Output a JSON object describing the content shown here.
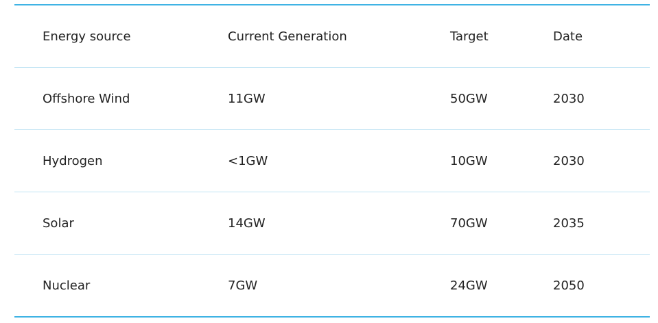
{
  "table": {
    "headers": [
      "Energy source",
      "Current Generation",
      "Target",
      "Date"
    ],
    "rows": [
      [
        "Offshore Wind",
        "11GW",
        "50GW",
        "2030"
      ],
      [
        "Hydrogen",
        "<1GW",
        "10GW",
        "2030"
      ],
      [
        "Solar",
        "14GW",
        "70GW",
        "2035"
      ],
      [
        "Nuclear",
        "7GW",
        "24GW",
        "2050"
      ]
    ]
  },
  "colors": {
    "border": "#3fb3e4",
    "row_divider": "#bfe3f3"
  }
}
